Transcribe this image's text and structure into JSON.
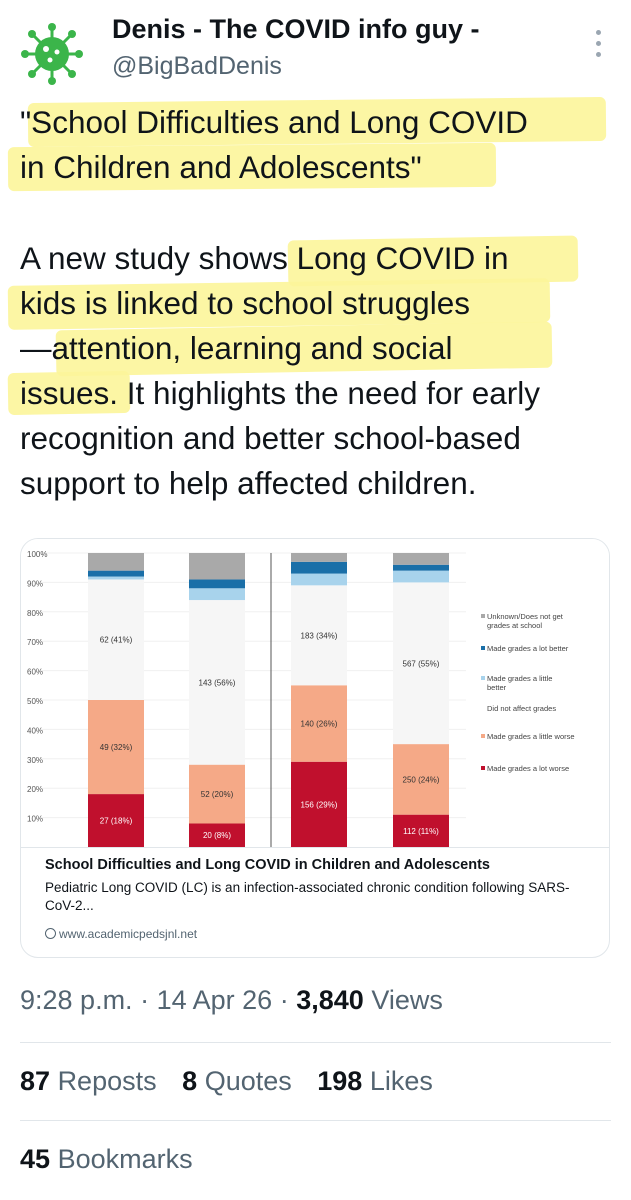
{
  "author": {
    "name": "Denis - The COVID info guy -",
    "handle": "@BigBadDenis",
    "avatar_icon": "virus-icon"
  },
  "tweet": {
    "lines": [
      "\"School Difficulties and Long COVID",
      "in Children and Adolescents\"",
      "",
      "A new study shows Long COVID in",
      "kids is linked to school struggles",
      "—attention, learning and social",
      "issues. It highlights the need for early",
      "recognition and better school-based",
      "support to help affected children."
    ]
  },
  "card": {
    "title": "School Difficulties and Long COVID in Children and Adolescents",
    "description": "Pediatric Long COVID (LC) is an infection-associated chronic condition following SARS-CoV-2...",
    "domain": "www.academicpedsjnl.net",
    "link_icon": "link-icon"
  },
  "chart_data": {
    "type": "bar",
    "stacked": true,
    "y_ticks": [
      "100%",
      "90%",
      "80%",
      "70%",
      "60%",
      "50%",
      "40%",
      "30%",
      "20%",
      "10%"
    ],
    "ylim": [
      0,
      100
    ],
    "bars": [
      {
        "segments": [
          18,
          32,
          41,
          1,
          2,
          6
        ],
        "labels": {
          "worse_lot": "27 (18%)",
          "worse_little": "49 (32%)",
          "no_effect": "62 (41%)"
        }
      },
      {
        "segments": [
          8,
          20,
          56,
          4,
          3,
          9
        ],
        "labels": {
          "worse_lot": "20 (8%)",
          "worse_little": "52 (20%)",
          "no_effect": "143 (56%)"
        }
      },
      {
        "segments": [
          29,
          26,
          34,
          4,
          4,
          3
        ],
        "labels": {
          "worse_lot": "156 (29%)",
          "worse_little": "140 (26%)",
          "no_effect": "183 (34%)"
        }
      },
      {
        "segments": [
          11,
          24,
          55,
          4,
          2,
          4
        ],
        "labels": {
          "worse_lot": "112 (11%)",
          "worse_little": "250 (24%)",
          "no_effect": "567 (55%)"
        }
      }
    ],
    "legend": [
      {
        "label": "Unknown/Does not get grades at school",
        "color": "#a9a9a9"
      },
      {
        "label": "Made grades a lot better",
        "color": "#1a6fa8"
      },
      {
        "label": "Made grades a little better",
        "color": "#a8d3ec"
      },
      {
        "label": "Did not affect grades",
        "color": "#f6f6f6"
      },
      {
        "label": "Made grades a little worse",
        "color": "#f5a987"
      },
      {
        "label": "Made grades a lot worse",
        "color": "#c0102d"
      }
    ],
    "segment_order": [
      "worse_lot",
      "worse_little",
      "no_effect",
      "better_little",
      "better_lot",
      "unknown"
    ],
    "segment_colors": [
      "#c0102d",
      "#f5a987",
      "#f6f6f6",
      "#a8d3ec",
      "#1a6fa8",
      "#a9a9a9"
    ]
  },
  "meta": {
    "time": "9:28 p.m.",
    "sep1": "·",
    "date": "14 Apr 26",
    "sep2": "·",
    "views_count": "3,840",
    "views_label": "Views"
  },
  "stats": {
    "reposts_count": "87",
    "reposts_label": "Reposts",
    "quotes_count": "8",
    "quotes_label": "Quotes",
    "likes_count": "198",
    "likes_label": "Likes",
    "bookmarks_count": "45",
    "bookmarks_label": "Bookmarks"
  },
  "colors": {
    "highlight": "#fcf59a",
    "secondary_text": "#536471",
    "avatar_green": "#3bb54a"
  }
}
